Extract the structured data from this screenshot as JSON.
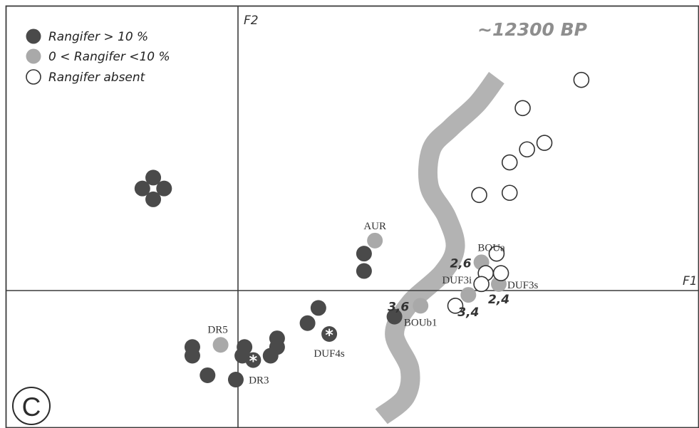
{
  "chart_data": {
    "type": "scatter",
    "panel_label": "C",
    "axes": {
      "x_label": "F1",
      "y_label": "F2",
      "x_range": [
        -9.4,
        19.2
      ],
      "y_range": [
        -5.8,
        11.3
      ],
      "grid": false
    },
    "legend": {
      "placement": "top-left",
      "entries": [
        {
          "key": "high",
          "label": "Rangifer > 10 %"
        },
        {
          "key": "low",
          "label": "0 < Rangifer <10 %"
        },
        {
          "key": "absent",
          "label": "Rangifer absent"
        }
      ]
    },
    "boundary": {
      "label": "~12300 BP",
      "points": [
        [
          11.9,
          9.8
        ],
        [
          11.0,
          8.6
        ],
        [
          9.8,
          7.5
        ],
        [
          8.9,
          6.5
        ],
        [
          8.8,
          4.8
        ],
        [
          9.6,
          3.4
        ],
        [
          10.0,
          2.0
        ],
        [
          9.4,
          0.8
        ],
        [
          7.9,
          -0.6
        ],
        [
          7.2,
          -2.0
        ],
        [
          7.9,
          -3.6
        ],
        [
          7.7,
          -4.9
        ],
        [
          6.6,
          -5.8
        ]
      ]
    },
    "series": [
      {
        "name": "Rangifer > 10 %",
        "key": "high",
        "color": "#4a4a4a",
        "points": [
          {
            "x": -3.9,
            "y": 5.2
          },
          {
            "x": -3.4,
            "y": 4.7
          },
          {
            "x": -3.9,
            "y": 4.2
          },
          {
            "x": -4.4,
            "y": 4.7
          },
          {
            "x": 5.8,
            "y": 1.7
          },
          {
            "x": 5.8,
            "y": 0.9
          },
          {
            "x": 7.2,
            "y": -1.2
          },
          {
            "x": 3.7,
            "y": -0.8
          },
          {
            "x": 3.2,
            "y": -1.5
          },
          {
            "x": -2.1,
            "y": -2.6
          },
          {
            "x": -2.1,
            "y": -3.0
          },
          {
            "x": 0.3,
            "y": -2.6
          },
          {
            "x": 0.2,
            "y": -3.0
          },
          {
            "x": 1.8,
            "y": -2.2
          },
          {
            "x": 1.8,
            "y": -2.6
          },
          {
            "x": 1.5,
            "y": -3.0
          },
          {
            "x": -1.4,
            "y": -3.9
          },
          {
            "x": -0.1,
            "y": -4.1
          },
          {
            "x": 0.7,
            "y": -3.2,
            "label": "DR3",
            "marker": "*"
          },
          {
            "x": 4.2,
            "y": -2.0,
            "label": "DUF4s",
            "marker": "*"
          }
        ]
      },
      {
        "name": "0 < Rangifer <10 %",
        "key": "low",
        "color": "#a9a9a9",
        "points": [
          {
            "x": -0.8,
            "y": -2.5,
            "label": "DR5"
          },
          {
            "x": 6.3,
            "y": 2.3,
            "label": "AUR"
          },
          {
            "x": 11.2,
            "y": 1.3,
            "label": "BOUa",
            "value": "2,6"
          },
          {
            "x": 12.0,
            "y": 0.3,
            "label": "DUF3s",
            "value": "2,4"
          },
          {
            "x": 10.6,
            "y": -0.2,
            "label": "DUF3i",
            "value": "3,4"
          },
          {
            "x": 8.4,
            "y": -0.7,
            "label": "BOUb1",
            "value": "3,6"
          }
        ]
      },
      {
        "name": "Rangifer absent",
        "key": "absent",
        "color": "#ffffff",
        "points": [
          {
            "x": 15.8,
            "y": 9.7
          },
          {
            "x": 13.1,
            "y": 8.4
          },
          {
            "x": 14.1,
            "y": 6.8
          },
          {
            "x": 13.3,
            "y": 6.5
          },
          {
            "x": 12.5,
            "y": 5.9
          },
          {
            "x": 11.1,
            "y": 4.4
          },
          {
            "x": 12.5,
            "y": 4.5
          },
          {
            "x": 11.9,
            "y": 1.7
          },
          {
            "x": 11.4,
            "y": 0.8
          },
          {
            "x": 12.1,
            "y": 0.8
          },
          {
            "x": 11.2,
            "y": 0.3
          },
          {
            "x": 10.0,
            "y": -0.7
          }
        ]
      }
    ]
  }
}
